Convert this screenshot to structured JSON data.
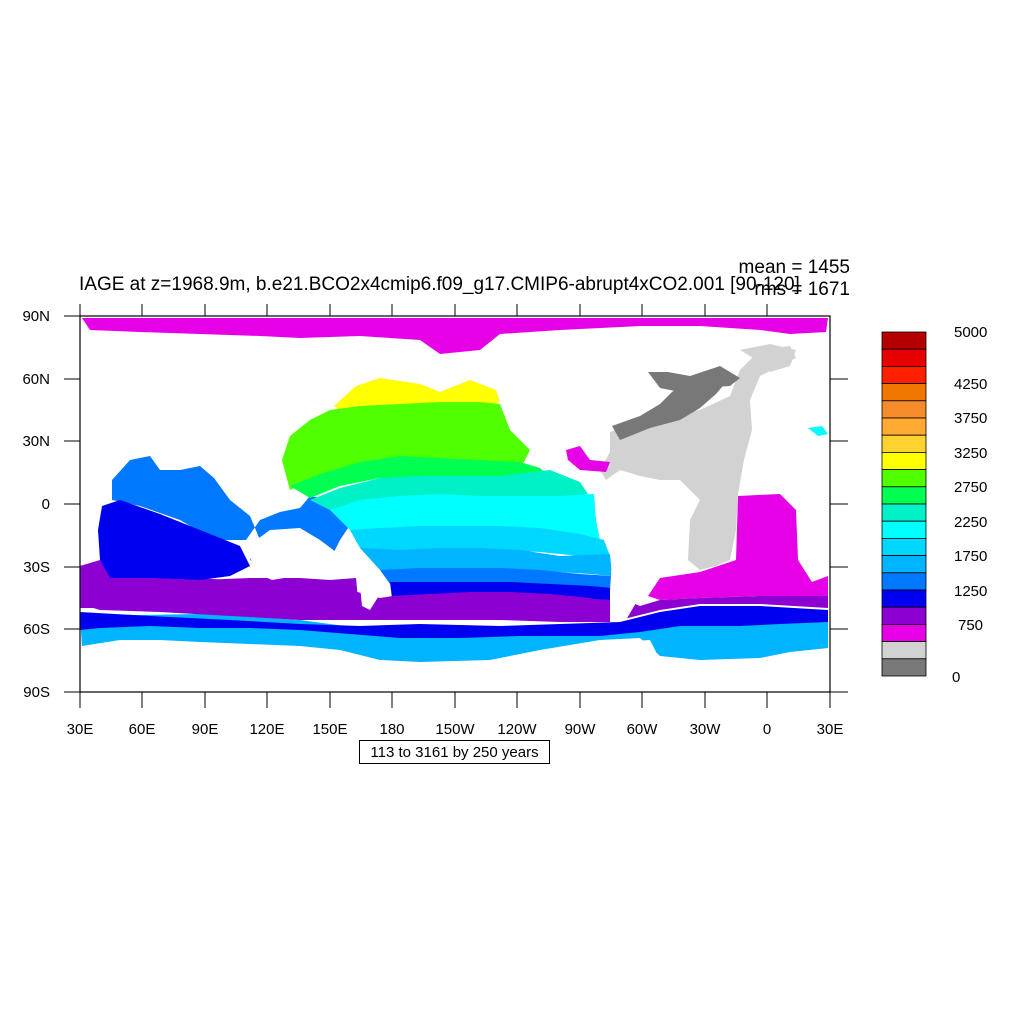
{
  "title": "IAGE at z=1968.9m, b.e21.BCO2x4cmip6.f09_g17.CMIP6-abrupt4xCO2.001 [90-120]",
  "stats": {
    "mean": "mean = 1455",
    "rms": "rms = 1671"
  },
  "info_box": "113 to 3161 by 250 years",
  "x_ticks": [
    "30E",
    "60E",
    "90E",
    "120E",
    "150E",
    "180",
    "150W",
    "120W",
    "90W",
    "60W",
    "30W",
    "0",
    "30E"
  ],
  "y_ticks": [
    "90N",
    "60N",
    "30N",
    "0",
    "30S",
    "60S",
    "90S"
  ],
  "colorbar": {
    "labels": [
      "5000",
      "4250",
      "3750",
      "3250",
      "2750",
      "2250",
      "1750",
      "1250",
      "750",
      "0"
    ],
    "colors": [
      "#b40000",
      "#e60000",
      "#ff2000",
      "#f07800",
      "#f58c28",
      "#ffaa32",
      "#ffd232",
      "#ffff00",
      "#50ff00",
      "#00ff50",
      "#00f0c8",
      "#00ffff",
      "#00d7ff",
      "#00b4ff",
      "#0078ff",
      "#0000f0",
      "#8c00d2",
      "#e600e6",
      "#d2d2d2",
      "#787878"
    ]
  },
  "map_colors": {
    "land": "#ffffff",
    "young_gray_dark": "#787878",
    "young_gray": "#d2d2d2",
    "magenta": "#e600e6",
    "purple": "#8c00d2",
    "blue": "#0000f0",
    "mid_blue": "#0078ff",
    "sky": "#00b4ff",
    "light_sky": "#00d7ff",
    "cyan": "#00ffff",
    "teal": "#00f0c8",
    "green": "#00ff50",
    "lime": "#50ff00",
    "yellow": "#ffff00"
  }
}
